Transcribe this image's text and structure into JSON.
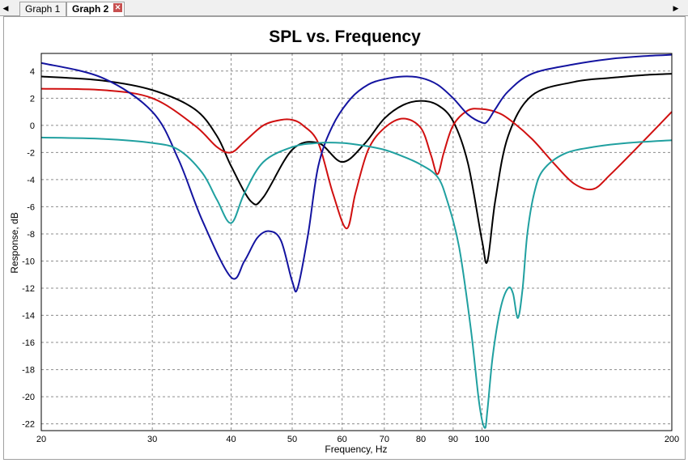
{
  "tabs": [
    {
      "label": "Graph 1",
      "active": false
    },
    {
      "label": "Graph 2",
      "active": true
    }
  ],
  "icons": {
    "nav_left": "triangle-left-icon",
    "nav_right": "triangle-right-icon",
    "close": "close-icon"
  },
  "chart_data": {
    "type": "line",
    "title": "SPL vs. Frequency",
    "xlabel": "Frequency, Hz",
    "ylabel": "Response, dB",
    "xscale": "log",
    "xlim": [
      20,
      200
    ],
    "ylim": [
      -22.5,
      5.3
    ],
    "xticks": [
      20,
      30,
      40,
      50,
      60,
      70,
      80,
      90,
      100,
      200
    ],
    "yticks": [
      4,
      2,
      0,
      -2,
      -4,
      -6,
      -8,
      -10,
      -12,
      -14,
      -16,
      -18,
      -20,
      -22
    ],
    "grid": true,
    "series": [
      {
        "color": "#000000",
        "x": [
          20,
          25,
          30,
          35,
          38,
          40,
          43,
          45,
          50,
          55,
          60,
          65,
          70,
          75,
          80,
          85,
          90,
          95,
          100,
          102,
          105,
          110,
          120,
          140,
          160,
          180,
          200
        ],
        "y": [
          3.6,
          3.3,
          2.6,
          1.2,
          -0.8,
          -3.0,
          -5.6,
          -5.3,
          -1.8,
          -1.3,
          -2.7,
          -1.4,
          0.5,
          1.5,
          1.8,
          1.5,
          0.3,
          -2.8,
          -8.5,
          -10.0,
          -5.5,
          -0.8,
          2.2,
          3.2,
          3.5,
          3.7,
          3.8
        ]
      },
      {
        "color": "#d01010",
        "x": [
          20,
          25,
          30,
          35,
          38,
          40,
          42,
          45,
          48,
          50,
          52,
          55,
          58,
          61,
          63,
          66,
          70,
          75,
          80,
          83,
          85,
          87,
          90,
          95,
          100,
          105,
          110,
          120,
          130,
          140,
          150,
          160,
          180,
          200
        ],
        "y": [
          2.7,
          2.6,
          2.0,
          0.0,
          -1.6,
          -2.0,
          -1.2,
          0.0,
          0.4,
          0.4,
          0.0,
          -1.3,
          -5.0,
          -7.6,
          -5.0,
          -1.8,
          -0.2,
          0.5,
          -0.2,
          -2.2,
          -3.6,
          -2.0,
          0.0,
          1.1,
          1.2,
          1.0,
          0.5,
          -1.0,
          -2.8,
          -4.3,
          -4.7,
          -3.6,
          -1.2,
          1.0
        ]
      },
      {
        "color": "#1414a0",
        "x": [
          20,
          25,
          30,
          33,
          36,
          40,
          42,
          44,
          46,
          48,
          50,
          51,
          53,
          55,
          58,
          62,
          66,
          70,
          75,
          80,
          85,
          90,
          95,
          100,
          102,
          105,
          110,
          120,
          140,
          160,
          180,
          200
        ],
        "y": [
          4.6,
          3.5,
          1.0,
          -2.5,
          -7.0,
          -11.2,
          -10.0,
          -8.3,
          -7.8,
          -8.5,
          -11.5,
          -12.0,
          -8.0,
          -3.0,
          0.0,
          2.0,
          3.0,
          3.4,
          3.6,
          3.5,
          3.0,
          2.0,
          0.8,
          0.2,
          0.3,
          1.2,
          2.5,
          3.8,
          4.5,
          4.9,
          5.1,
          5.2
        ]
      },
      {
        "color": "#20a0a0",
        "x": [
          20,
          25,
          30,
          33,
          36,
          38,
          40,
          42,
          45,
          50,
          55,
          60,
          65,
          70,
          75,
          80,
          85,
          88,
          92,
          96,
          99,
          101,
          102,
          104,
          107,
          110,
          112,
          114,
          116,
          118,
          121,
          125,
          135,
          150,
          170,
          200
        ],
        "y": [
          -0.9,
          -1.0,
          -1.3,
          -1.8,
          -3.5,
          -5.5,
          -7.2,
          -5.0,
          -2.7,
          -1.6,
          -1.3,
          -1.3,
          -1.5,
          -1.8,
          -2.3,
          -2.9,
          -3.8,
          -5.5,
          -9.0,
          -15.0,
          -20.5,
          -22.3,
          -21.0,
          -17.0,
          -13.5,
          -12.0,
          -12.4,
          -14.2,
          -12.0,
          -8.0,
          -5.0,
          -3.3,
          -2.1,
          -1.6,
          -1.3,
          -1.1
        ]
      }
    ]
  }
}
